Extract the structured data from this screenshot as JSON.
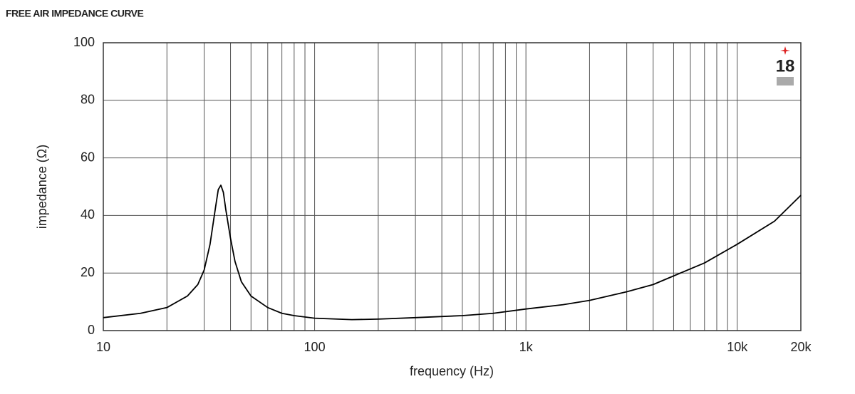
{
  "chart_data": {
    "type": "line",
    "title": "FREE AIR IMPEDANCE CURVE",
    "x_label": "frequency (Hz)",
    "y_label": "impedance (Ω)",
    "logo_text": "18",
    "x": [
      10,
      15,
      20,
      25,
      28,
      30,
      32,
      34,
      35,
      36,
      37,
      38,
      40,
      42,
      45,
      50,
      60,
      70,
      80,
      100,
      150,
      200,
      300,
      500,
      700,
      1000,
      1500,
      2000,
      3000,
      4000,
      5000,
      7000,
      10000,
      15000,
      20000
    ],
    "series": [
      {
        "name": "impedance",
        "color": "#000000",
        "values": [
          4.5,
          6,
          8,
          12,
          16,
          21,
          30,
          43,
          49,
          50.5,
          48,
          42,
          32,
          24,
          17,
          12,
          8,
          6,
          5.2,
          4.3,
          3.8,
          4,
          4.5,
          5.2,
          6,
          7.5,
          9,
          10.5,
          13.5,
          16,
          19,
          23.5,
          30,
          38,
          47
        ]
      }
    ],
    "xlim": [
      10,
      20000
    ],
    "ylim": [
      0,
      100
    ],
    "x_log": true,
    "grid": true,
    "xticks": [
      10,
      100,
      {
        "value": 1000,
        "label": "1k"
      },
      {
        "value": 10000,
        "label": "10k"
      },
      {
        "value": 20000,
        "label": "20k"
      }
    ],
    "xgrid": [
      20,
      30,
      40,
      50,
      60,
      70,
      80,
      90,
      200,
      300,
      400,
      500,
      600,
      700,
      800,
      900,
      2000,
      3000,
      4000,
      5000,
      6000,
      7000,
      8000,
      9000
    ],
    "yticks": [
      0,
      20,
      40,
      60,
      80,
      100
    ]
  }
}
